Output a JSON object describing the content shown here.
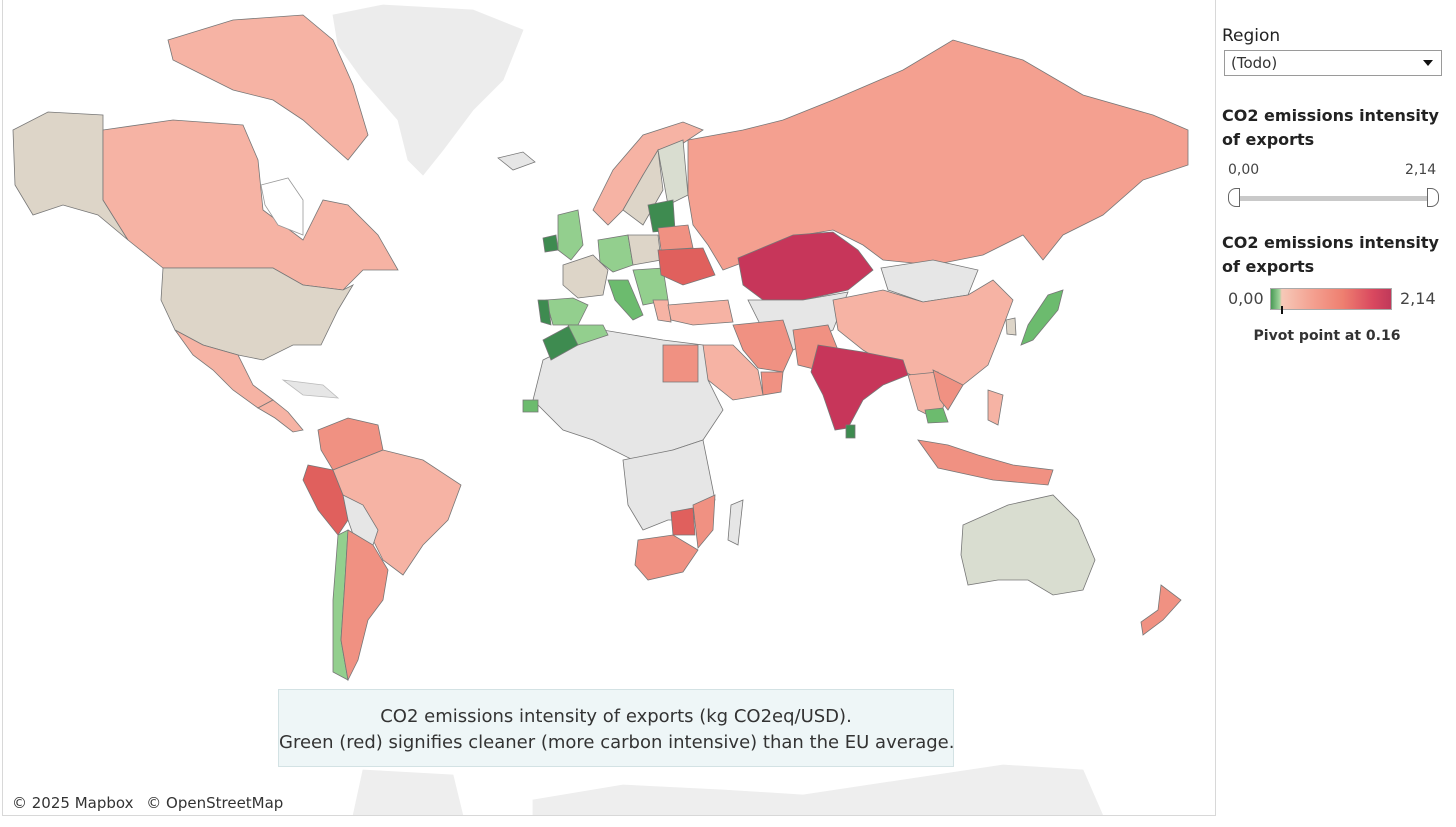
{
  "map": {
    "attribution": [
      "© 2025 Mapbox",
      "© OpenStreetMap"
    ],
    "caption_line1": "CO2 emissions intensity of exports (kg CO2eq/USD).",
    "caption_line2": "Green (red) signifies cleaner (more carbon intensive) than the EU average.",
    "colors": {
      "ocean": "#ffffff",
      "no_data": "#e6e6e6",
      "neutral": "#ddd5c8",
      "light_red": "#f6b3a4",
      "mid_red": "#f09182",
      "strong_red": "#e0605d",
      "deep_red": "#c7365a",
      "light_green": "#93cf8e",
      "mid_green": "#6cbb6e",
      "dark_green": "#3e8b50",
      "grey_green": "#d9ddd0"
    }
  },
  "panel": {
    "region_title": "Region",
    "region_value": "(Todo)",
    "filter_title_line1": "CO2 emissions intensity",
    "filter_title_line2": "of exports",
    "filter_min": "0,00",
    "filter_max": "2,14",
    "legend_title_line1": "CO2 emissions intensity",
    "legend_title_line2": "of exports",
    "legend_min": "0,00",
    "legend_max": "2,14",
    "pivot_note": "Pivot point at 0.16"
  }
}
